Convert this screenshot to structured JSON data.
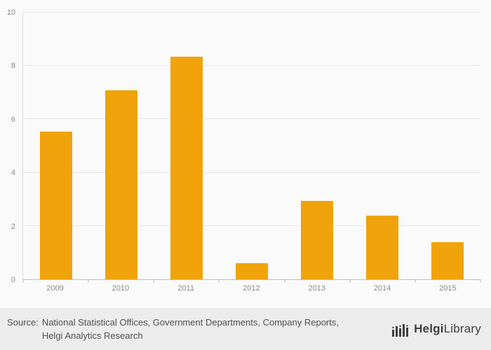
{
  "chart_data": {
    "type": "bar",
    "title": "",
    "xlabel": "",
    "ylabel": "",
    "categories": [
      "2009",
      "2010",
      "2011",
      "2012",
      "2013",
      "2014",
      "2015"
    ],
    "values": [
      5.55,
      7.1,
      8.35,
      0.6,
      2.95,
      2.4,
      1.4
    ],
    "ylim": [
      0,
      10
    ],
    "yticks": [
      0,
      2,
      4,
      6,
      8,
      10
    ],
    "grid": true,
    "legend": false,
    "bar_color": "#F0A30A"
  },
  "footer": {
    "source_label": "Source:",
    "source_text": "National Statistical Offices, Government Departments, Company Reports, Helgi Analytics Research",
    "brand": {
      "name_bold": "Helgi",
      "name_regular": "Library",
      "logo_icon": "bar-skyline-icon"
    }
  },
  "colors": {
    "bar": "#F0A30A",
    "grid": "#e7e7e7",
    "axis": "#bdbdbd",
    "tick_label": "#8a8a8a",
    "footer_bg": "#ececec",
    "source_text": "#4f4f4f",
    "brand_text": "#3f3f3f"
  }
}
